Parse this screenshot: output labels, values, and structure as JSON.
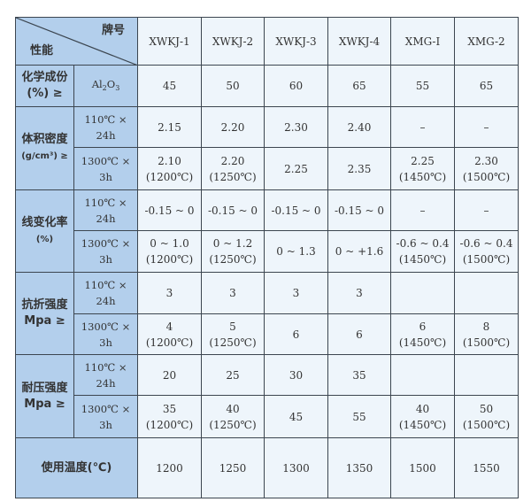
{
  "header": {
    "corner_top": "牌号",
    "corner_bottom": "性能",
    "grades": [
      "XWKJ-1",
      "XWKJ-2",
      "XWKJ-3",
      "XWKJ-4",
      "XMG-Ⅰ",
      "XMG-2"
    ]
  },
  "chem": {
    "label1": "化学成份",
    "label2": "(%) ≥",
    "cond_main": "Al",
    "cond_sub1": "2",
    "cond_o": "O",
    "cond_sub2": "3",
    "values": [
      "45",
      "50",
      "60",
      "65",
      "55",
      "65"
    ]
  },
  "density": {
    "label1": "体积密度",
    "label2": "(g/cm³) ≥",
    "cond1": "110℃ × 24h",
    "cond2": "1300℃ × 3h",
    "row1": [
      "2.15",
      "2.20",
      "2.30",
      "2.40",
      "–",
      "–"
    ],
    "row2": [
      "2.10",
      "2.20",
      "2.25",
      "2.35",
      "2.25",
      "2.30"
    ],
    "row2_note": [
      "(1200℃)",
      "(1250℃)",
      "",
      "",
      "(1450℃)",
      "(1500℃)"
    ]
  },
  "linear": {
    "label1": "线变化率",
    "label2": "(%)",
    "cond1": "110℃ × 24h",
    "cond2": "1300℃ × 3h",
    "row1": [
      "-0.15 ~ 0",
      "-0.15 ~ 0",
      "-0.15 ~ 0",
      "-0.15 ~ 0",
      "–",
      "–"
    ],
    "row2": [
      "0 ~ 1.0",
      "0 ~ 1.2",
      "0 ~ 1.3",
      "0 ~ +1.6",
      "-0.6 ~ 0.4",
      "-0.6 ~ 0.4"
    ],
    "row2_note": [
      "(1200℃)",
      "(1250℃)",
      "",
      "",
      "(1450℃)",
      "(1500℃)"
    ]
  },
  "flexural": {
    "label1": "抗折强度",
    "label2": "Mpa ≥",
    "cond1": "110℃ × 24h",
    "cond2": "1300℃ × 3h",
    "row1": [
      "3",
      "3",
      "3",
      "3",
      "",
      ""
    ],
    "row2": [
      "4",
      "5",
      "6",
      "6",
      "6",
      "8"
    ],
    "row2_note": [
      "(1200℃)",
      "(1250℃)",
      "",
      "",
      "(1450℃)",
      "(1500℃)"
    ]
  },
  "compressive": {
    "label1": "耐压强度",
    "label2": "Mpa ≥",
    "cond1": "110℃ × 24h",
    "cond2": "1300℃ × 3h",
    "row1": [
      "20",
      "25",
      "30",
      "35",
      "",
      ""
    ],
    "row2": [
      "35",
      "40",
      "45",
      "55",
      "40",
      "50"
    ],
    "row2_note": [
      "(1200℃)",
      "(1250℃)",
      "",
      "",
      "(1450℃)",
      "(1500℃)"
    ]
  },
  "usetemp": {
    "label": "使用温度(℃)",
    "values": [
      "1200",
      "1250",
      "1300",
      "1350",
      "1500",
      "1550"
    ]
  },
  "colors": {
    "header_bg": "#b3cfec",
    "cell_bg": "#eef5fb",
    "border": "#3c4650"
  }
}
